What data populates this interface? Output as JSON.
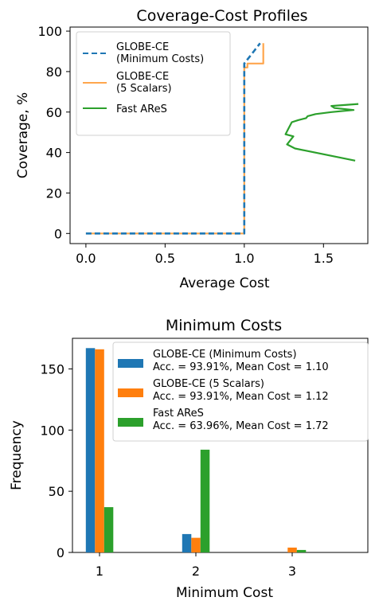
{
  "chart_data": [
    {
      "type": "line",
      "title": "Coverage-Cost Profiles",
      "xlabel": "Average Cost",
      "ylabel": "Coverage, %",
      "xlim": [
        -0.1,
        1.78
      ],
      "ylim": [
        -5,
        102
      ],
      "xticks": [
        0.0,
        0.5,
        1.0,
        1.5
      ],
      "xtick_labels": [
        "0.0",
        "0.5",
        "1.0",
        "1.5"
      ],
      "yticks": [
        0,
        20,
        40,
        60,
        80,
        100
      ],
      "ytick_labels": [
        "0",
        "20",
        "40",
        "60",
        "80",
        "100"
      ],
      "legend_position": "top-left",
      "series": [
        {
          "name": "GLOBE-CE\n(Minimum Costs)",
          "color": "#1f77b4",
          "dash": "dashed",
          "x": [
            0.0,
            1.0,
            1.0,
            1.02,
            1.04,
            1.06,
            1.08,
            1.1
          ],
          "y": [
            0,
            0,
            84,
            86,
            88,
            90,
            92,
            94
          ]
        },
        {
          "name": "GLOBE-CE\n(5 Scalars)",
          "color": "#ff7f0e",
          "dash": "solid",
          "x": [
            0.0,
            1.0,
            1.0,
            1.02,
            1.02,
            1.12,
            1.12
          ],
          "y": [
            0,
            0,
            82,
            82,
            84,
            84,
            94
          ]
        },
        {
          "name": "Fast AReS",
          "color": "#2ca02c",
          "dash": "solid",
          "x": [
            1.72,
            1.55,
            1.57,
            1.69,
            1.55,
            1.45,
            1.4,
            1.39,
            1.34,
            1.3,
            1.28,
            1.26,
            1.31,
            1.27,
            1.32,
            1.7
          ],
          "y": [
            64,
            63,
            62,
            61,
            60,
            59,
            58,
            57,
            56,
            55,
            52,
            49,
            48,
            44,
            42,
            36
          ]
        }
      ]
    },
    {
      "type": "bar",
      "title": "Minimum Costs",
      "xlabel": "Minimum Cost",
      "ylabel": "Frequency",
      "categories": [
        "1",
        "2",
        "3"
      ],
      "xtick_labels": [
        "1",
        "2",
        "3"
      ],
      "ylim": [
        0,
        175
      ],
      "yticks": [
        0,
        50,
        100,
        150
      ],
      "ytick_labels": [
        "0",
        "50",
        "100",
        "150"
      ],
      "legend_position": "top-right",
      "series": [
        {
          "name": "GLOBE-CE (Minimum Costs)",
          "sub": "Acc. = 93.91%, Mean Cost = 1.10",
          "color": "#1f77b4",
          "values": [
            167,
            15,
            0
          ]
        },
        {
          "name": "GLOBE-CE (5 Scalars)",
          "sub": "Acc. = 93.91%, Mean Cost = 1.12",
          "color": "#ff7f0e",
          "values": [
            166,
            12,
            4
          ]
        },
        {
          "name": "Fast AReS",
          "sub": "Acc. = 63.96%, Mean Cost = 1.72",
          "color": "#2ca02c",
          "values": [
            37,
            84,
            2
          ]
        }
      ]
    }
  ]
}
